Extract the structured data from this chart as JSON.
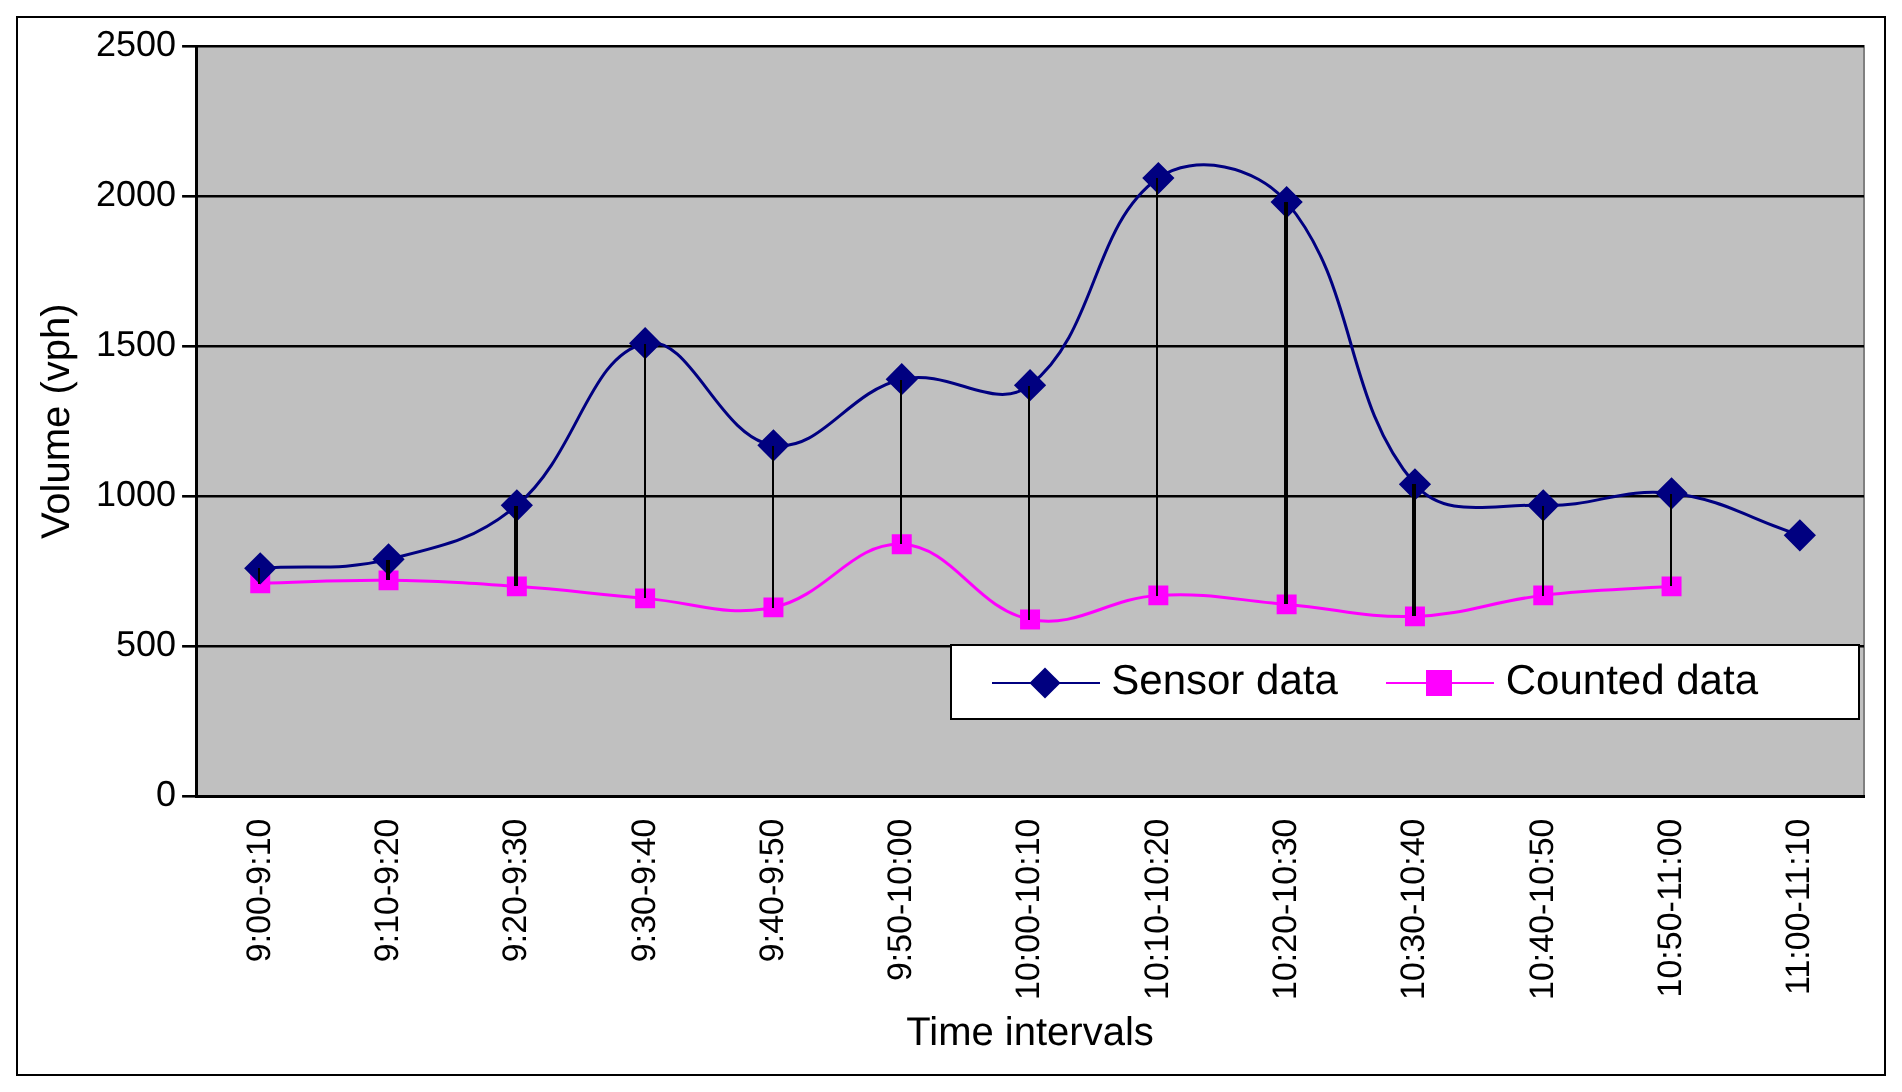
{
  "chart_data": {
    "type": "line",
    "xlabel": "Time intervals",
    "ylabel": "Volume (vph)",
    "categories": [
      "9:00-9:10",
      "9:10-9:20",
      "9:20-9:30",
      "9:30-9:40",
      "9:40-9:50",
      "9:50-10:00",
      "10:00-10:10",
      "10:10-10:20",
      "10:20-10:30",
      "10:30-10:40",
      "10:40-10:50",
      "10:50-11:00",
      "11:00-11:10"
    ],
    "series": [
      {
        "name": "Sensor data",
        "color": "#000080",
        "marker": "diamond",
        "values": [
          760,
          790,
          970,
          1510,
          1170,
          1390,
          1370,
          2060,
          1980,
          1040,
          970,
          1010,
          870
        ]
      },
      {
        "name": "Counted data",
        "color": "#ff00ff",
        "marker": "square",
        "values": [
          710,
          720,
          700,
          660,
          630,
          840,
          590,
          670,
          640,
          600,
          670,
          700,
          null
        ]
      }
    ],
    "ylim": [
      0,
      2500
    ],
    "yticks": [
      0,
      500,
      1000,
      1500,
      2000,
      2500
    ],
    "grid": "y",
    "legend": "bottom right"
  }
}
